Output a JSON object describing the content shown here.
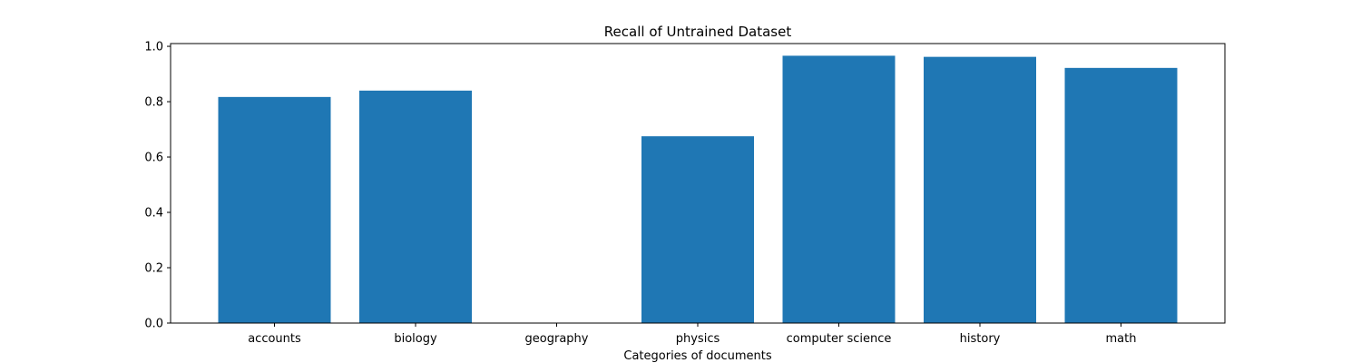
{
  "chart_data": {
    "type": "bar",
    "title": "Recall of Untrained Dataset",
    "xlabel": "Categories of documents",
    "ylabel": "",
    "categories": [
      "accounts",
      "biology",
      "geography",
      "physics",
      "computer science",
      "history",
      "math"
    ],
    "values": [
      0.817,
      0.84,
      0.0,
      0.675,
      0.966,
      0.962,
      0.922
    ],
    "ylim": [
      0,
      1.01
    ],
    "yticks": [
      "0.0",
      "0.2",
      "0.4",
      "0.6",
      "0.8",
      "1.0"
    ],
    "bar_color": "#1f77b4",
    "grid": false,
    "legend": "none"
  }
}
